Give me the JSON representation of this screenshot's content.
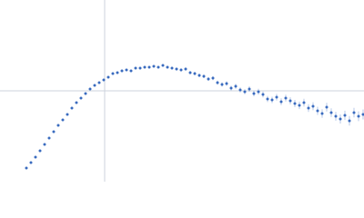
{
  "chart_data": {
    "type": "scatter",
    "x": [
      -86,
      -81,
      -76,
      -71,
      -66,
      -61,
      -56,
      -51,
      -46,
      -41,
      -36,
      -31,
      -26,
      -21,
      -16,
      -11,
      -6,
      -1,
      4,
      9,
      14,
      19,
      24,
      29,
      34,
      39,
      44,
      49,
      54,
      59,
      64,
      69,
      74,
      79,
      84,
      89,
      94,
      99,
      104,
      109,
      114,
      119,
      124,
      129,
      134,
      139,
      144,
      149,
      154,
      159,
      164,
      169,
      174,
      179,
      184,
      189,
      194,
      199,
      204,
      209,
      214,
      219,
      224,
      229,
      234,
      239,
      244,
      249,
      254,
      259,
      264,
      269,
      274,
      279,
      284
    ],
    "series": [
      {
        "color": "#3a6bbf",
        "values": [
          -85,
          -79,
          -73,
          -66,
          -59,
          -52,
          -45,
          -38,
          -32,
          -26,
          -19,
          -13,
          -8,
          -3,
          2,
          6,
          9,
          12,
          15,
          19,
          20,
          22,
          23,
          22,
          25,
          25,
          26,
          26,
          27,
          26,
          28,
          26,
          25,
          24,
          23,
          24,
          20,
          19,
          17,
          16,
          13,
          14,
          9,
          7,
          8,
          3,
          5,
          1,
          -1,
          2,
          -3,
          -1,
          -4,
          -9,
          -10,
          -7,
          -12,
          -8,
          -11,
          -14,
          -16,
          -13,
          -19,
          -17,
          -22,
          -25,
          -18,
          -24,
          -28,
          -31,
          -27,
          -33,
          -24,
          -28,
          -26
        ],
        "errors": [
          0.5,
          0.5,
          0.5,
          0.5,
          0.5,
          0.5,
          0.5,
          0.5,
          0.5,
          0.6,
          0.6,
          0.6,
          0.6,
          0.7,
          0.7,
          0.7,
          0.8,
          0.8,
          0.9,
          0.9,
          1,
          1,
          1,
          1.1,
          1.1,
          1.2,
          1.2,
          1.3,
          1.3,
          1.4,
          1.4,
          1.5,
          1.5,
          1.6,
          1.6,
          1.7,
          1.8,
          1.9,
          2,
          2,
          2.1,
          2.2,
          2.3,
          2.4,
          2.5,
          2.6,
          2.7,
          2.8,
          2.9,
          3,
          3.1,
          3.2,
          3.3,
          3.4,
          3.5,
          3.6,
          3.7,
          3.8,
          3.9,
          4,
          4.1,
          4.2,
          4.3,
          4.4,
          4.5,
          4.6,
          4.7,
          4.8,
          4.9,
          5,
          5.1,
          5.2,
          5.3,
          5.4,
          5.5
        ]
      }
    ],
    "xlim": [
      -115,
      285
    ],
    "ylim": [
      -100,
      100
    ],
    "xticks": [
      0
    ],
    "yticks": [
      0
    ],
    "grid": true,
    "tick_labels": false
  }
}
